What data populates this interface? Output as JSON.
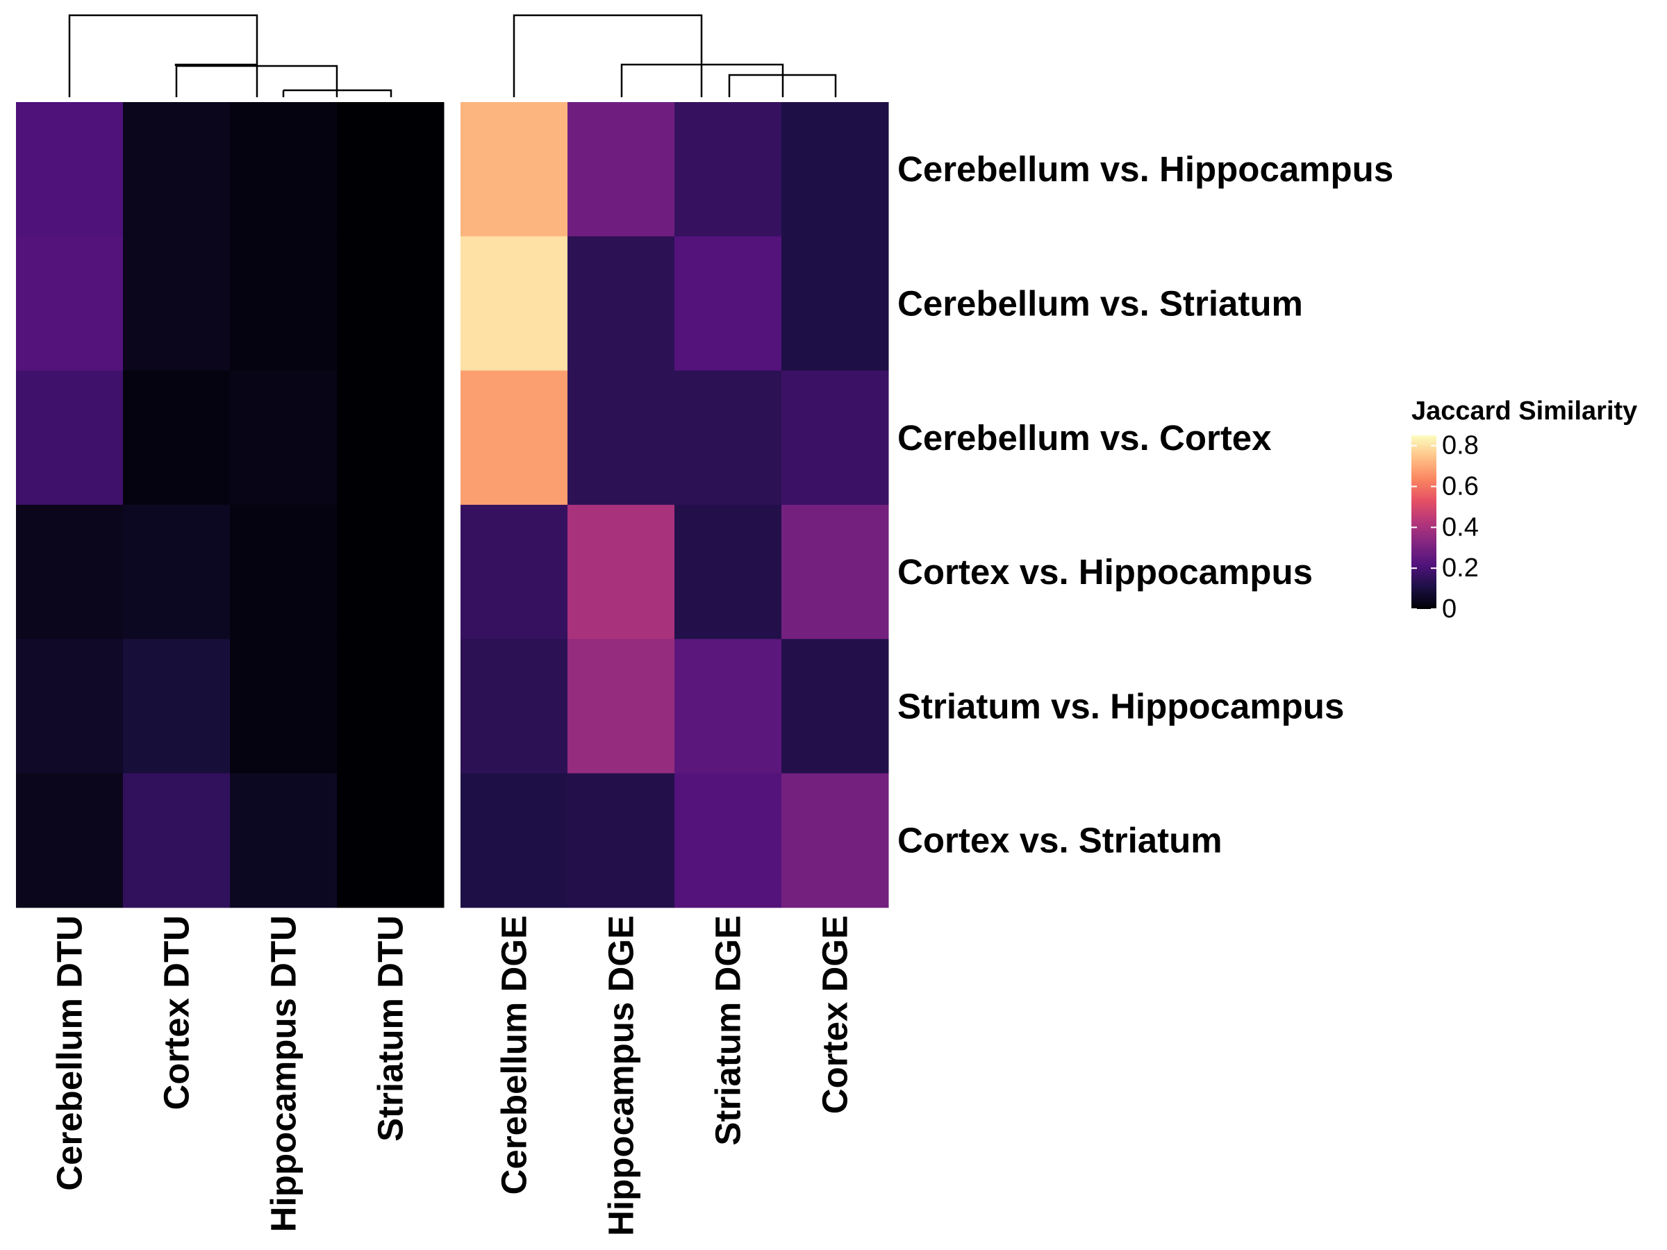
{
  "chart_data": {
    "type": "heatmap",
    "rows": [
      "Cerebellum vs. Hippocampus",
      "Cerebellum vs. Striatum",
      "Cerebellum vs. Cortex",
      "Cortex vs. Hippocampus",
      "Striatum vs. Hippocampus",
      "Cortex vs. Striatum"
    ],
    "panels": [
      {
        "name": "DTU",
        "columns": [
          "Cerebellum DTU",
          "Cortex DTU",
          "Hippocampus DTU",
          "Striatum DTU"
        ],
        "values": [
          [
            0.21,
            0.04,
            0.02,
            0.0
          ],
          [
            0.22,
            0.04,
            0.02,
            0.0
          ],
          [
            0.18,
            0.02,
            0.03,
            0.0
          ],
          [
            0.04,
            0.05,
            0.02,
            0.0
          ],
          [
            0.06,
            0.09,
            0.02,
            0.0
          ],
          [
            0.04,
            0.15,
            0.05,
            0.0
          ]
        ]
      },
      {
        "name": "DGE",
        "columns": [
          "Cerebellum DGE",
          "Hippocampus DGE",
          "Striatum DGE",
          "Cortex DGE"
        ],
        "values": [
          [
            0.72,
            0.28,
            0.16,
            0.11
          ],
          [
            0.8,
            0.14,
            0.22,
            0.11
          ],
          [
            0.68,
            0.14,
            0.14,
            0.17
          ],
          [
            0.16,
            0.4,
            0.12,
            0.29
          ],
          [
            0.14,
            0.36,
            0.24,
            0.12
          ],
          [
            0.11,
            0.12,
            0.22,
            0.29
          ]
        ]
      }
    ],
    "legend": {
      "title": "Jaccard Similarity",
      "ticks": [
        "0.8",
        "0.6",
        "0.4",
        "0.2",
        "0"
      ],
      "tick_values": [
        0.8,
        0.6,
        0.4,
        0.2,
        0.0
      ],
      "min": 0,
      "max": 0.85,
      "placement": "right"
    },
    "colormap": [
      "#000004",
      "#1c1044",
      "#4f127b",
      "#812581",
      "#b5367a",
      "#e55064",
      "#fb8761",
      "#fec287",
      "#fcfdbf"
    ]
  }
}
